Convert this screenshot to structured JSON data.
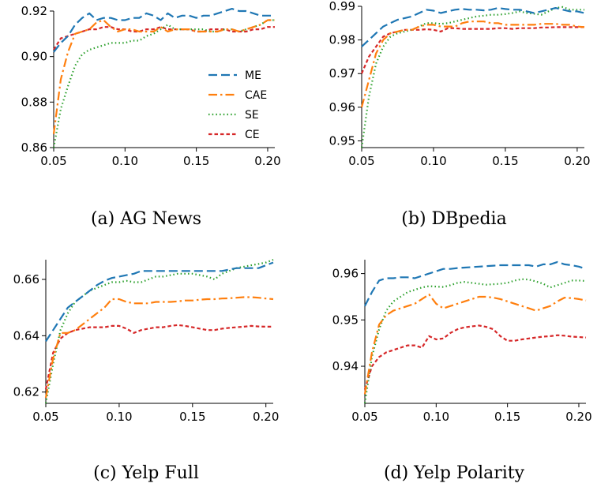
{
  "chart_data": [
    {
      "type": "line",
      "caption": "(a) AG News",
      "x": [
        0.05,
        0.055,
        0.06,
        0.065,
        0.07,
        0.075,
        0.08,
        0.085,
        0.09,
        0.095,
        0.1,
        0.105,
        0.11,
        0.115,
        0.12,
        0.125,
        0.13,
        0.135,
        0.14,
        0.145,
        0.15,
        0.155,
        0.16,
        0.165,
        0.17,
        0.175,
        0.18,
        0.185,
        0.19,
        0.195,
        0.2,
        0.205
      ],
      "xlim": [
        0.05,
        0.205
      ],
      "ylim": [
        0.86,
        0.92
      ],
      "xticks": [
        "0.05",
        "0.10",
        "0.15",
        "0.20"
      ],
      "xtick_values": [
        0.05,
        0.1,
        0.15,
        0.2
      ],
      "yticks": [
        "0.86",
        "0.88",
        "0.90",
        "0.92"
      ],
      "ytick_values": [
        0.86,
        0.88,
        0.9,
        0.92
      ],
      "legend": [
        "ME",
        "CAE",
        "SE",
        "CE"
      ],
      "legend_position": "right",
      "series": [
        {
          "name": "ME",
          "values": [
            0.902,
            0.906,
            0.909,
            0.914,
            0.917,
            0.919,
            0.916,
            0.917,
            0.917,
            0.916,
            0.916,
            0.917,
            0.917,
            0.919,
            0.918,
            0.916,
            0.919,
            0.917,
            0.918,
            0.918,
            0.917,
            0.918,
            0.918,
            0.919,
            0.92,
            0.921,
            0.92,
            0.92,
            0.919,
            0.918,
            0.918,
            0.918
          ]
        },
        {
          "name": "CAE",
          "values": [
            0.866,
            0.89,
            0.902,
            0.91,
            0.911,
            0.912,
            0.915,
            0.916,
            0.913,
            0.911,
            0.912,
            0.912,
            0.911,
            0.911,
            0.911,
            0.913,
            0.911,
            0.912,
            0.912,
            0.912,
            0.911,
            0.911,
            0.911,
            0.911,
            0.912,
            0.912,
            0.911,
            0.912,
            0.913,
            0.914,
            0.916,
            0.916
          ]
        },
        {
          "name": "SE",
          "values": [
            0.86,
            0.877,
            0.887,
            0.896,
            0.901,
            0.903,
            0.904,
            0.905,
            0.906,
            0.906,
            0.906,
            0.907,
            0.907,
            0.909,
            0.91,
            0.912,
            0.914,
            0.912,
            0.912,
            0.912,
            0.912,
            0.912,
            0.911,
            0.911,
            0.912,
            0.912,
            0.911,
            0.912,
            0.913,
            0.914,
            0.916,
            0.916
          ]
        },
        {
          "name": "CE",
          "values": [
            0.903,
            0.908,
            0.909,
            0.91,
            0.911,
            0.912,
            0.912,
            0.913,
            0.913,
            0.912,
            0.912,
            0.911,
            0.911,
            0.912,
            0.912,
            0.913,
            0.912,
            0.912,
            0.912,
            0.912,
            0.911,
            0.911,
            0.912,
            0.912,
            0.912,
            0.911,
            0.911,
            0.911,
            0.912,
            0.912,
            0.913,
            0.913
          ]
        }
      ]
    },
    {
      "type": "line",
      "caption": "(b) DBpedia",
      "x": [
        0.05,
        0.055,
        0.06,
        0.065,
        0.07,
        0.075,
        0.08,
        0.085,
        0.09,
        0.095,
        0.1,
        0.105,
        0.11,
        0.115,
        0.12,
        0.125,
        0.13,
        0.135,
        0.14,
        0.145,
        0.15,
        0.155,
        0.16,
        0.165,
        0.17,
        0.175,
        0.18,
        0.185,
        0.19,
        0.195,
        0.2,
        0.205
      ],
      "xlim": [
        0.05,
        0.205
      ],
      "ylim": [
        0.948,
        0.99
      ],
      "xticks": [
        "0.05",
        "0.10",
        "0.15",
        "0.20"
      ],
      "xtick_values": [
        0.05,
        0.1,
        0.15,
        0.2
      ],
      "yticks": [
        "0.95",
        "0.96",
        "0.97",
        "0.98",
        "0.99"
      ],
      "ytick_values": [
        0.95,
        0.96,
        0.97,
        0.98,
        0.99
      ],
      "series": [
        {
          "name": "ME",
          "values": [
            0.978,
            0.98,
            0.982,
            0.984,
            0.985,
            0.986,
            0.9865,
            0.987,
            0.988,
            0.989,
            0.9887,
            0.988,
            0.9885,
            0.989,
            0.9892,
            0.989,
            0.989,
            0.9888,
            0.989,
            0.9895,
            0.9892,
            0.989,
            0.989,
            0.9885,
            0.988,
            0.9885,
            0.989,
            0.9895,
            0.989,
            0.9885,
            0.9885,
            0.988
          ]
        },
        {
          "name": "CAE",
          "values": [
            0.96,
            0.968,
            0.976,
            0.98,
            0.982,
            0.9825,
            0.983,
            0.983,
            0.984,
            0.9845,
            0.9845,
            0.984,
            0.984,
            0.984,
            0.985,
            0.9855,
            0.9855,
            0.9855,
            0.985,
            0.985,
            0.9845,
            0.9845,
            0.9845,
            0.9845,
            0.9845,
            0.9848,
            0.9848,
            0.9848,
            0.9845,
            0.9845,
            0.984,
            0.9838
          ]
        },
        {
          "name": "SE",
          "values": [
            0.948,
            0.963,
            0.973,
            0.978,
            0.981,
            0.982,
            0.9825,
            0.983,
            0.984,
            0.985,
            0.985,
            0.9848,
            0.985,
            0.9855,
            0.986,
            0.9865,
            0.987,
            0.9872,
            0.9875,
            0.9875,
            0.9877,
            0.988,
            0.9885,
            0.988,
            0.9878,
            0.9875,
            0.9885,
            0.9895,
            0.9898,
            0.989,
            0.989,
            0.989
          ]
        },
        {
          "name": "CE",
          "values": [
            0.97,
            0.975,
            0.978,
            0.981,
            0.982,
            0.9825,
            0.983,
            0.983,
            0.983,
            0.9832,
            0.983,
            0.9825,
            0.9835,
            0.9835,
            0.9833,
            0.9833,
            0.9833,
            0.9833,
            0.9833,
            0.9835,
            0.9835,
            0.9833,
            0.9835,
            0.9835,
            0.9835,
            0.9837,
            0.9837,
            0.9838,
            0.9838,
            0.9838,
            0.9838,
            0.9838
          ]
        }
      ]
    },
    {
      "type": "line",
      "caption": "(c) Yelp Full",
      "x": [
        0.05,
        0.055,
        0.06,
        0.065,
        0.07,
        0.075,
        0.08,
        0.085,
        0.09,
        0.095,
        0.1,
        0.105,
        0.11,
        0.115,
        0.12,
        0.125,
        0.13,
        0.135,
        0.14,
        0.145,
        0.15,
        0.155,
        0.16,
        0.165,
        0.17,
        0.175,
        0.18,
        0.185,
        0.19,
        0.195,
        0.2,
        0.205
      ],
      "xlim": [
        0.05,
        0.205
      ],
      "ylim": [
        0.616,
        0.667
      ],
      "xticks": [
        "0.05",
        "0.10",
        "0.15",
        "0.20"
      ],
      "xtick_values": [
        0.05,
        0.1,
        0.15,
        0.2
      ],
      "yticks": [
        "0.62",
        "0.64",
        "0.66"
      ],
      "ytick_values": [
        0.62,
        0.64,
        0.66
      ],
      "series": [
        {
          "name": "ME",
          "values": [
            0.638,
            0.642,
            0.646,
            0.65,
            0.652,
            0.654,
            0.656,
            0.658,
            0.6595,
            0.6605,
            0.661,
            0.6615,
            0.662,
            0.663,
            0.663,
            0.663,
            0.663,
            0.663,
            0.663,
            0.663,
            0.663,
            0.663,
            0.663,
            0.663,
            0.663,
            0.6635,
            0.664,
            0.664,
            0.664,
            0.664,
            0.665,
            0.666
          ]
        },
        {
          "name": "CAE",
          "values": [
            0.618,
            0.632,
            0.641,
            0.641,
            0.642,
            0.644,
            0.646,
            0.648,
            0.65,
            0.653,
            0.653,
            0.652,
            0.6515,
            0.6515,
            0.6515,
            0.652,
            0.652,
            0.652,
            0.6522,
            0.6525,
            0.6525,
            0.6528,
            0.653,
            0.653,
            0.6532,
            0.6533,
            0.6535,
            0.6537,
            0.6537,
            0.6535,
            0.6532,
            0.653
          ]
        },
        {
          "name": "SE",
          "values": [
            0.616,
            0.63,
            0.642,
            0.648,
            0.652,
            0.654,
            0.656,
            0.657,
            0.658,
            0.659,
            0.659,
            0.6595,
            0.659,
            0.659,
            0.66,
            0.661,
            0.661,
            0.6615,
            0.662,
            0.662,
            0.662,
            0.6615,
            0.661,
            0.66,
            0.662,
            0.663,
            0.664,
            0.6645,
            0.665,
            0.6655,
            0.666,
            0.667
          ]
        },
        {
          "name": "CE",
          "values": [
            0.621,
            0.634,
            0.639,
            0.641,
            0.642,
            0.6425,
            0.643,
            0.643,
            0.643,
            0.6435,
            0.6435,
            0.6425,
            0.641,
            0.642,
            0.6425,
            0.643,
            0.643,
            0.6435,
            0.6438,
            0.6435,
            0.643,
            0.6425,
            0.642,
            0.642,
            0.6425,
            0.6428,
            0.643,
            0.6432,
            0.6435,
            0.6433,
            0.6432,
            0.6432
          ]
        }
      ]
    },
    {
      "type": "line",
      "caption": "(d) Yelp Polarity",
      "x": [
        0.05,
        0.055,
        0.06,
        0.065,
        0.07,
        0.075,
        0.08,
        0.085,
        0.09,
        0.095,
        0.1,
        0.105,
        0.11,
        0.115,
        0.12,
        0.125,
        0.13,
        0.135,
        0.14,
        0.145,
        0.15,
        0.155,
        0.16,
        0.165,
        0.17,
        0.175,
        0.18,
        0.185,
        0.19,
        0.195,
        0.2,
        0.205
      ],
      "xlim": [
        0.05,
        0.205
      ],
      "ylim": [
        0.932,
        0.963
      ],
      "xticks": [
        "0.05",
        "0.10",
        "0.15",
        "0.20"
      ],
      "xtick_values": [
        0.05,
        0.1,
        0.15,
        0.2
      ],
      "yticks": [
        "0.94",
        "0.95",
        "0.96"
      ],
      "ytick_values": [
        0.94,
        0.95,
        0.96
      ],
      "series": [
        {
          "name": "ME",
          "values": [
            0.953,
            0.956,
            0.9585,
            0.959,
            0.959,
            0.9592,
            0.9592,
            0.959,
            0.9595,
            0.96,
            0.9605,
            0.961,
            0.961,
            0.9612,
            0.9613,
            0.9614,
            0.9615,
            0.9616,
            0.9617,
            0.9618,
            0.9618,
            0.9618,
            0.9618,
            0.9618,
            0.9615,
            0.962,
            0.962,
            0.9625,
            0.962,
            0.9618,
            0.9615,
            0.961
          ]
        },
        {
          "name": "CAE",
          "values": [
            0.934,
            0.943,
            0.949,
            0.951,
            0.952,
            0.9525,
            0.953,
            0.9535,
            0.9545,
            0.9555,
            0.9535,
            0.9525,
            0.953,
            0.9535,
            0.954,
            0.9545,
            0.955,
            0.955,
            0.9548,
            0.9545,
            0.954,
            0.9535,
            0.953,
            0.9525,
            0.952,
            0.9525,
            0.953,
            0.954,
            0.9548,
            0.9547,
            0.9545,
            0.9542
          ]
        },
        {
          "name": "SE",
          "values": [
            0.932,
            0.942,
            0.948,
            0.952,
            0.954,
            0.955,
            0.956,
            0.9565,
            0.957,
            0.9573,
            0.9572,
            0.9571,
            0.9575,
            0.958,
            0.9582,
            0.958,
            0.9578,
            0.9576,
            0.9577,
            0.9578,
            0.958,
            0.9585,
            0.9588,
            0.9587,
            0.9583,
            0.9578,
            0.957,
            0.9575,
            0.958,
            0.9585,
            0.9585,
            0.9584
          ]
        },
        {
          "name": "CE",
          "values": [
            0.935,
            0.94,
            0.942,
            0.943,
            0.9435,
            0.944,
            0.9445,
            0.9445,
            0.944,
            0.9465,
            0.9458,
            0.946,
            0.9472,
            0.948,
            0.9484,
            0.9486,
            0.9488,
            0.9485,
            0.948,
            0.9465,
            0.9455,
            0.9455,
            0.9458,
            0.946,
            0.9462,
            0.9464,
            0.9465,
            0.9467,
            0.9466,
            0.9464,
            0.9463,
            0.9462
          ]
        }
      ]
    }
  ],
  "styles": {
    "ME": {
      "color": "#1f77b4",
      "dash": "11,5"
    },
    "CAE": {
      "color": "#ff7f0e",
      "dash": "11,4,2.5,4"
    },
    "SE": {
      "color": "#2ca02c",
      "dash": "1.5,3.2"
    },
    "CE": {
      "color": "#d62728",
      "dash": "4.5,3"
    }
  }
}
